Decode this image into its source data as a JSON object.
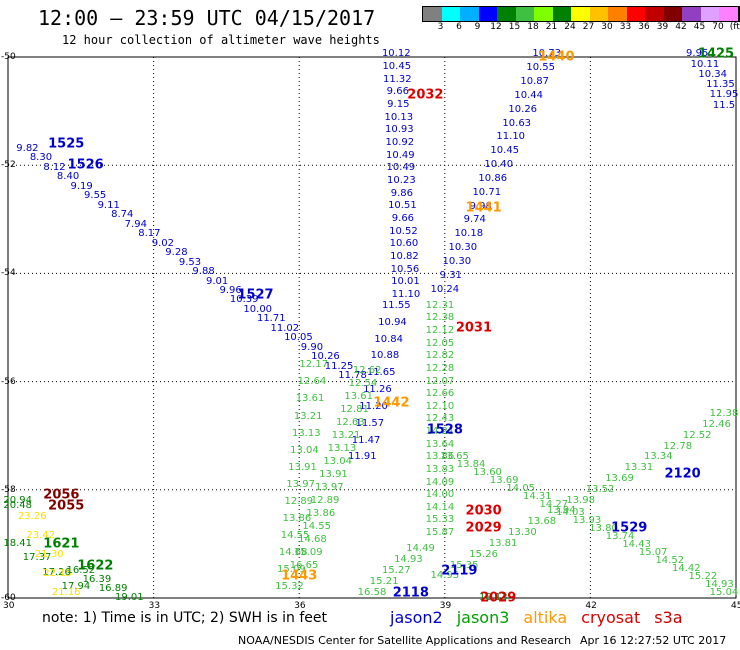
{
  "title": "12:00 – 23:59 UTC 04/15/2017",
  "subtitle": "12 hour collection of altimeter wave heights",
  "colorbar": {
    "colors": [
      "#808080",
      "#00ffff",
      "#00b0ff",
      "#0000ff",
      "#008000",
      "#40c040",
      "#80ff00",
      "#008000",
      "#ffff00",
      "#ffc000",
      "#ff8000",
      "#ff0000",
      "#c00000",
      "#800000",
      "#9040c0",
      "#e0a0ff",
      "#ff80ff",
      "#000000"
    ],
    "labels": [
      "3",
      "6",
      "9",
      "12",
      "15",
      "18",
      "21",
      "24",
      "27",
      "30",
      "33",
      "36",
      "39",
      "42",
      "45",
      "70",
      "(ft)"
    ]
  },
  "axes": {
    "lat_labels": [
      "-50",
      "-52",
      "-54",
      "-56",
      "-58",
      "-60"
    ],
    "lon_labels": [
      "30",
      "33",
      "36",
      "39",
      "42",
      "45"
    ]
  },
  "satellites": [
    {
      "name": "jason2",
      "color": "#0000cc"
    },
    {
      "name": "jason3",
      "color": "#00a000"
    },
    {
      "name": "altika",
      "color": "#ff9900"
    },
    {
      "name": "cryosat",
      "color": "#dd0000"
    },
    {
      "name": "s3a",
      "color": "#cc0000"
    }
  ],
  "footnote": "note:  1) Time is in UTC;  2) SWH is in feet",
  "credit": "NOAA/NESDIS Center for Satellite Applications and Research",
  "stamp": "Apr 16 12:27:52 UTC 2017",
  "passes": [
    {
      "id": "1525",
      "color": "#0000cc",
      "lon": 31.2,
      "lat": -51.6
    },
    {
      "id": "1526",
      "color": "#0000cc",
      "lon": 31.6,
      "lat": -52.0
    },
    {
      "id": "1527",
      "color": "#0000cc",
      "lon": 35.1,
      "lat": -54.4
    },
    {
      "id": "1528",
      "color": "#0000cc",
      "lon": 39.0,
      "lat": -56.9
    },
    {
      "id": "1529",
      "color": "#0000cc",
      "lon": 42.8,
      "lat": -58.7
    },
    {
      "id": "1425",
      "color": "#008000",
      "lon": 44.8,
      "lat": -49.95
    },
    {
      "id": "1440",
      "color": "#ff9900",
      "lon": 41.3,
      "lat": -50.0
    },
    {
      "id": "1441",
      "color": "#ff9900",
      "lon": 39.8,
      "lat": -52.8
    },
    {
      "id": "1442",
      "color": "#ff9900",
      "lon": 37.9,
      "lat": -56.4
    },
    {
      "id": "1443",
      "color": "#ff9900",
      "lon": 36.0,
      "lat": -59.6
    },
    {
      "id": "2032",
      "color": "#dd0000",
      "lon": 38.6,
      "lat": -50.7
    },
    {
      "id": "2031",
      "color": "#dd0000",
      "lon": 39.6,
      "lat": -55.0
    },
    {
      "id": "2030",
      "color": "#dd0000",
      "lon": 39.8,
      "lat": -58.4
    },
    {
      "id": "2029",
      "color": "#dd0000",
      "lon": 39.8,
      "lat": -58.7
    },
    {
      "id": "2029",
      "color": "#dd0000",
      "lon": 40.1,
      "lat": -60.0
    },
    {
      "id": "2056",
      "color": "#800000",
      "lon": 31.1,
      "lat": -58.1
    },
    {
      "id": "2055",
      "color": "#800000",
      "lon": 31.2,
      "lat": -58.3
    },
    {
      "id": "2120",
      "color": "#0000cc",
      "lon": 43.9,
      "lat": -57.7
    },
    {
      "id": "2119",
      "color": "#0000cc",
      "lon": 39.3,
      "lat": -59.5
    },
    {
      "id": "2118",
      "color": "#0000cc",
      "lon": 38.3,
      "lat": -59.9
    },
    {
      "id": "1621",
      "color": "#008000",
      "lon": 31.1,
      "lat": -59.0
    },
    {
      "id": "1622",
      "color": "#008000",
      "lon": 31.8,
      "lat": -59.4
    }
  ],
  "tracks": [
    {
      "color": "#0000cc",
      "start": [
        30.4,
        -51.7
      ],
      "end": [
        37.1,
        -55.9
      ],
      "values": [
        "9.82",
        "8.30",
        "8.12",
        "8.40",
        "9.19",
        "9.55",
        "9.11",
        "8.74",
        "7.94",
        "8.17",
        "9.02",
        "9.28",
        "9.53",
        "9.88",
        "9.01",
        "9.96",
        "10.39",
        "10.00",
        "11.71",
        "11.02",
        "10.05",
        "9.90",
        "10.26",
        "11.25",
        "11.78"
      ]
    },
    {
      "color": "#0000cc",
      "start": [
        38.0,
        -49.95
      ],
      "end": [
        38.2,
        -54.4
      ],
      "values": [
        "10.12",
        "10.45",
        "11.32",
        "9.66",
        "9.15",
        "10.13",
        "10.93",
        "10.92",
        "10.49",
        "10.49",
        "10.23",
        "9.86",
        "10.51",
        "9.66",
        "10.52",
        "10.60",
        "10.82",
        "10.56",
        "10.01",
        "11.10"
      ]
    },
    {
      "color": "#0000cc",
      "start": [
        41.1,
        -49.95
      ],
      "end": [
        39.0,
        -54.3
      ],
      "values": [
        "10.73",
        "10.55",
        "10.87",
        "10.44",
        "10.26",
        "10.63",
        "11.10",
        "10.45",
        "10.40",
        "10.86",
        "10.71",
        "9.98",
        "9.74",
        "10.18",
        "10.30",
        "10.30",
        "9.31",
        "10.24"
      ]
    },
    {
      "color": "#0000cc",
      "start": [
        38.0,
        -54.6
      ],
      "end": [
        37.3,
        -57.4
      ],
      "values": [
        "11.55",
        "10.94",
        "10.84",
        "10.88",
        "11.65",
        "11.26",
        "11.20",
        "11.57",
        "11.47",
        "11.91"
      ]
    },
    {
      "color": "#0000cc",
      "start": [
        44.2,
        -49.95
      ],
      "end": [
        45.0,
        -50.9
      ],
      "values": [
        "9.95",
        "10.11",
        "10.34",
        "11.35",
        "11.95",
        "11.5"
      ]
    },
    {
      "color": "#40c040",
      "start": [
        38.9,
        -54.6
      ],
      "end": [
        38.9,
        -58.8
      ],
      "values": [
        "12.31",
        "12.38",
        "12.12",
        "12.05",
        "12.82",
        "12.28",
        "12.07",
        "12.66",
        "12.10",
        "12.43",
        "14.21",
        "13.64",
        "13.86",
        "13.83",
        "14.09",
        "14.00",
        "14.14",
        "15.33",
        "15.87"
      ]
    },
    {
      "color": "#40c040",
      "start": [
        37.4,
        -55.8
      ],
      "end": [
        36.1,
        -59.4
      ],
      "values": [
        "12.62",
        "12.54",
        "13.61",
        "12.81",
        "12.63",
        "13.21",
        "13.13",
        "13.04",
        "13.91",
        "13.97",
        "12.89",
        "13.86",
        "14.55",
        "14.68",
        "15.09",
        "16.65"
      ]
    },
    {
      "color": "#40c040",
      "start": [
        36.3,
        -55.7
      ],
      "end": [
        35.8,
        -59.8
      ],
      "values": [
        "12.17",
        "12.64",
        "13.61",
        "13.21",
        "13.13",
        "13.04",
        "13.91",
        "13.97",
        "12.89",
        "13.86",
        "14.55",
        "14.68",
        "15.09",
        "15.32"
      ]
    },
    {
      "color": "#40c040",
      "start": [
        39.2,
        -57.4
      ],
      "end": [
        45.0,
        -59.9
      ],
      "values": [
        "13.65",
        "13.84",
        "13.60",
        "13.69",
        "14.05",
        "14.31",
        "14.27",
        "14.03",
        "13.93",
        "13.80",
        "13.74",
        "14.43",
        "15.07",
        "14.52",
        "14.42",
        "15.22",
        "14.93",
        "15.04"
      ]
    },
    {
      "color": "#40c040",
      "start": [
        45.0,
        -56.6
      ],
      "end": [
        39.0,
        -59.6
      ],
      "values": [
        "12.38",
        "12.46",
        "12.52",
        "12.78",
        "13.34",
        "13.31",
        "13.69",
        "13.52",
        "13.98",
        "13.94",
        "13.68",
        "13.30",
        "13.81",
        "15.26",
        "15.35",
        "14.95"
      ]
    },
    {
      "color": "#40c040",
      "start": [
        37.5,
        -59.9
      ],
      "end": [
        38.5,
        -59.1
      ],
      "values": [
        "16.58",
        "15.21",
        "15.27",
        "14.93",
        "14.49"
      ]
    },
    {
      "color": "#008000",
      "start": [
        30.2,
        -58.2
      ],
      "end": [
        30.2,
        -58.3
      ],
      "values": [
        "20.94",
        "20.48"
      ]
    },
    {
      "color": "#008000",
      "start": [
        30.2,
        -59.0
      ],
      "end": [
        31.4,
        -59.8
      ],
      "values": [
        "18.41",
        "17.37",
        "17.26",
        "17.94"
      ]
    },
    {
      "color": "#ffe000",
      "start": [
        30.5,
        -58.5
      ],
      "end": [
        31.2,
        -59.9
      ],
      "values": [
        "23.26",
        "23.42",
        "21.30",
        "22.15",
        "21.16"
      ]
    },
    {
      "color": "#008000",
      "start": [
        31.5,
        -59.5
      ],
      "end": [
        32.5,
        -60.0
      ],
      "values": [
        "16.52",
        "16.39",
        "16.89",
        "19.01"
      ]
    },
    {
      "color": "#008000",
      "start": [
        40.0,
        -60.0
      ],
      "end": [
        40.0,
        -60.0
      ],
      "values": [
        "18.13"
      ]
    }
  ]
}
